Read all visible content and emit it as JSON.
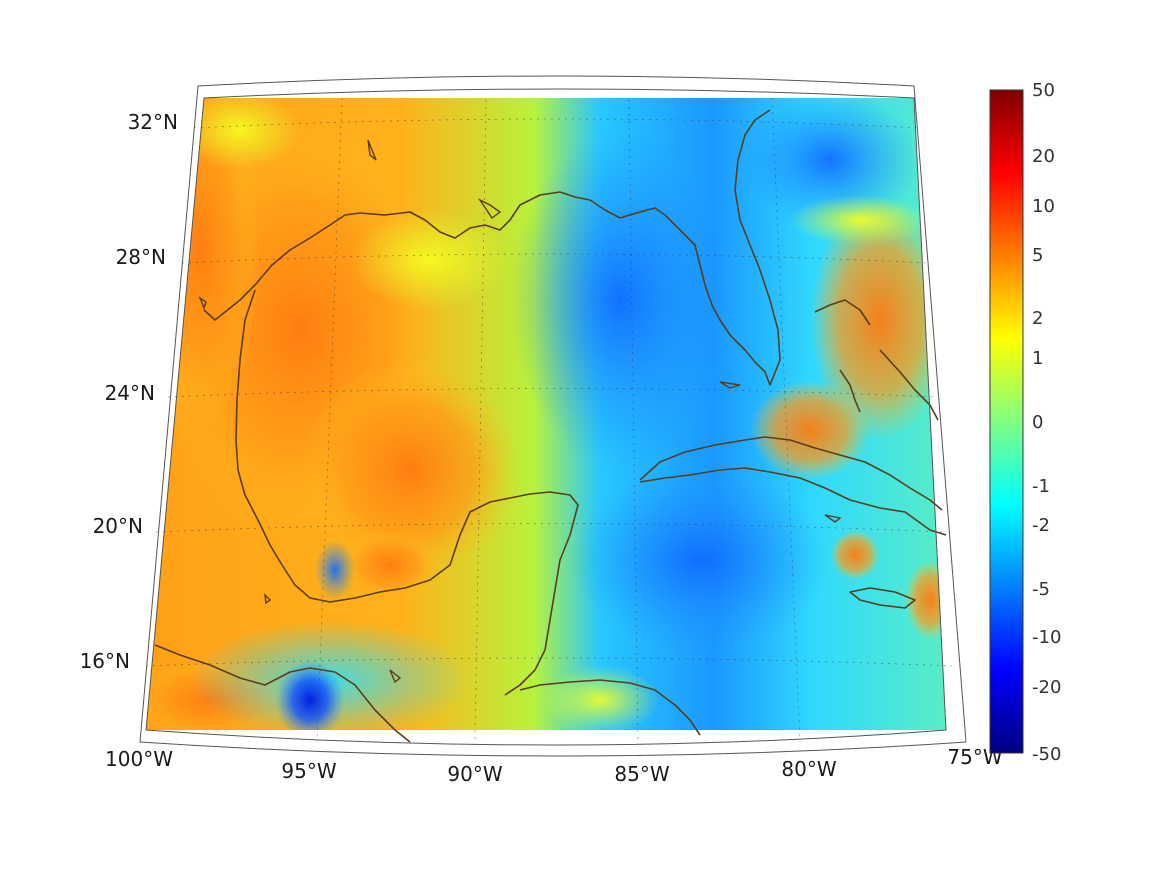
{
  "map": {
    "longitude_labels": [
      "100°W",
      "95°W",
      "90°W",
      "85°W",
      "80°W",
      "75°W"
    ],
    "latitude_labels": [
      "32°N",
      "28°N",
      "24°N",
      "20°N",
      "16°N"
    ],
    "extent": {
      "lon": [
        -100,
        -75
      ],
      "lat": [
        14,
        33
      ]
    },
    "projection": "conic",
    "coastline_color": "#5a3d1c"
  },
  "colorbar": {
    "ticks": [
      "50",
      "20",
      "10",
      "5",
      "2",
      "1",
      "0",
      "-1",
      "-2",
      "-5",
      "-10",
      "-20",
      "-50"
    ],
    "colormap": "jet",
    "placement": "right"
  }
}
